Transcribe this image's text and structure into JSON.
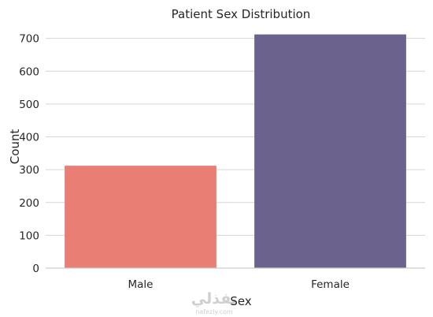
{
  "chart_data": {
    "type": "bar",
    "title": "Patient Sex Distribution",
    "xlabel": "Sex",
    "ylabel": "Count",
    "categories": [
      "Male",
      "Female"
    ],
    "values": [
      312,
      712
    ],
    "ylim": [
      0,
      740
    ],
    "yticks": [
      0,
      100,
      200,
      300,
      400,
      500,
      600,
      700
    ],
    "colors": [
      "#e97f74",
      "#6c628e"
    ],
    "grid": true,
    "legend": "none"
  },
  "watermark": {
    "arabic": "نفذلي",
    "latin": "nafezly.com"
  }
}
